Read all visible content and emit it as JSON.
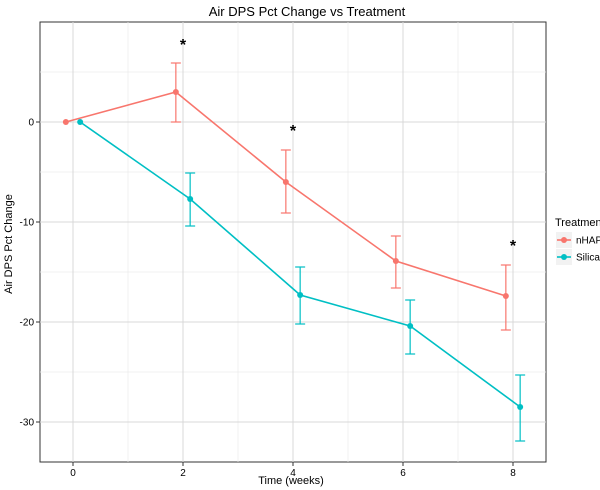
{
  "chart_data": {
    "type": "line",
    "title": "Air DPS Pct Change vs Treatment",
    "xlabel": "Time (weeks)",
    "ylabel": "Air DPS Pct Change",
    "xlim": [
      -0.6,
      8.6
    ],
    "ylim": [
      -34,
      10
    ],
    "xticks": [
      0,
      2,
      4,
      6,
      8
    ],
    "yticks": [
      0,
      -10,
      -20,
      -30
    ],
    "grid": true,
    "legend": {
      "title": "Treatment",
      "position": "right"
    },
    "series": [
      {
        "name": "nHAP",
        "color": "#f8766d",
        "x": [
          0,
          2,
          4,
          6,
          8
        ],
        "y": [
          0,
          3,
          -6,
          -13.9,
          -17.4
        ],
        "err_low": [
          0,
          0,
          -9.1,
          -16.6,
          -20.8
        ],
        "err_high": [
          0,
          5.9,
          -2.8,
          -11.4,
          -14.3
        ]
      },
      {
        "name": "Silica",
        "color": "#00bfc4",
        "x": [
          0,
          2,
          4,
          6,
          8
        ],
        "y": [
          0,
          -7.7,
          -17.3,
          -20.4,
          -28.5
        ],
        "err_low": [
          0,
          -10.4,
          -20.2,
          -23.2,
          -31.9
        ],
        "err_high": [
          0,
          -5.1,
          -14.5,
          -17.8,
          -25.3
        ]
      }
    ],
    "annotations": [
      {
        "text": "*",
        "x": 2,
        "y": 7.8
      },
      {
        "text": "*",
        "x": 4,
        "y": -0.8
      },
      {
        "text": "*",
        "x": 8,
        "y": -12.3
      }
    ]
  }
}
